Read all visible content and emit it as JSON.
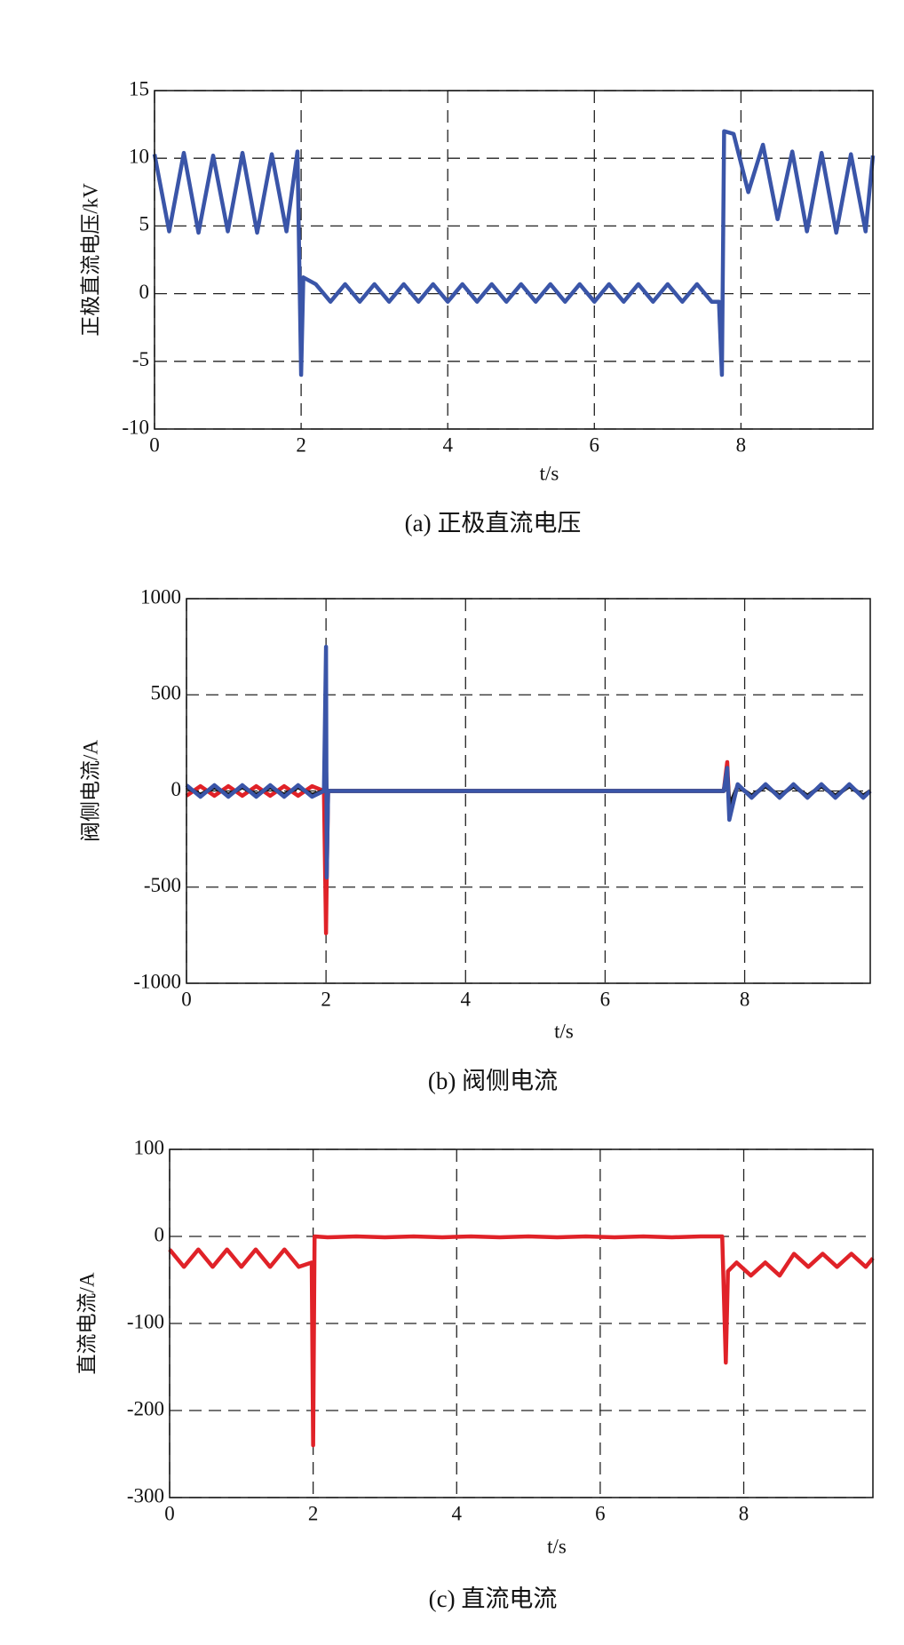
{
  "chart_data": [
    {
      "type": "line",
      "caption": "(a) 正极直流电压",
      "xlabel": "t/s",
      "ylabel": "正极直流电压/kV",
      "xlim": [
        0,
        9.8
      ],
      "xticks": [
        0,
        2,
        4,
        6,
        8
      ],
      "ylim": [
        -10,
        15
      ],
      "yticks": [
        -10,
        -5,
        0,
        5,
        10,
        15
      ],
      "grid": true,
      "x": [
        0,
        0.2,
        0.4,
        0.6,
        0.8,
        1.0,
        1.2,
        1.4,
        1.6,
        1.8,
        1.95,
        2.0,
        2.03,
        2.2,
        2.4,
        2.6,
        2.8,
        3.0,
        3.2,
        3.4,
        3.6,
        3.8,
        4.0,
        4.2,
        4.4,
        4.6,
        4.8,
        5.0,
        5.2,
        5.4,
        5.6,
        5.8,
        6.0,
        6.2,
        6.4,
        6.6,
        6.8,
        7.0,
        7.2,
        7.4,
        7.6,
        7.7,
        7.74,
        7.77,
        7.9,
        8.1,
        8.3,
        8.5,
        8.7,
        8.9,
        9.1,
        9.3,
        9.5,
        9.7,
        9.8
      ],
      "series": [
        {
          "color": "#3a55a8",
          "values": [
            10.3,
            4.6,
            10.4,
            4.5,
            10.2,
            4.6,
            10.4,
            4.5,
            10.3,
            4.6,
            10.5,
            -6,
            1.2,
            0.7,
            -0.6,
            0.7,
            -0.6,
            0.7,
            -0.6,
            0.7,
            -0.6,
            0.7,
            -0.6,
            0.7,
            -0.6,
            0.7,
            -0.6,
            0.7,
            -0.6,
            0.7,
            -0.6,
            0.7,
            -0.6,
            0.7,
            -0.6,
            0.7,
            -0.6,
            0.7,
            -0.6,
            0.7,
            -0.6,
            -0.6,
            -6,
            12,
            11.8,
            7.5,
            11,
            5.5,
            10.5,
            4.6,
            10.4,
            4.5,
            10.3,
            4.6,
            10.2
          ]
        }
      ]
    },
    {
      "type": "line",
      "caption": "(b) 阀侧电流",
      "xlabel": "t/s",
      "ylabel": "阀侧电流/A",
      "xlim": [
        0,
        9.8
      ],
      "xticks": [
        0,
        2,
        4,
        6,
        8
      ],
      "ylim": [
        -1000,
        1000
      ],
      "yticks": [
        -1000,
        -500,
        0,
        500,
        1000
      ],
      "grid": true,
      "x": [
        0,
        0.2,
        0.4,
        0.6,
        0.8,
        1.0,
        1.2,
        1.4,
        1.6,
        1.8,
        1.97,
        2.0,
        2.01,
        2.03,
        2.2,
        2.6,
        3.0,
        3.4,
        3.8,
        4.2,
        4.6,
        5.0,
        5.4,
        5.8,
        6.2,
        6.6,
        7.0,
        7.4,
        7.7,
        7.75,
        7.78,
        7.9,
        8.1,
        8.3,
        8.5,
        8.7,
        8.9,
        9.1,
        9.3,
        9.5,
        9.7,
        9.8
      ],
      "series": [
        {
          "color": "#e02228",
          "values": [
            -25,
            25,
            -25,
            25,
            -25,
            25,
            -25,
            25,
            -25,
            25,
            0,
            -740,
            -450,
            0,
            0,
            0,
            0,
            0,
            0,
            0,
            0,
            0,
            0,
            0,
            0,
            0,
            0,
            0,
            0,
            150,
            -100,
            30,
            -30,
            30,
            -30,
            30,
            -30,
            30,
            -30,
            30,
            -30,
            0
          ]
        },
        {
          "color": "#111111",
          "values": [
            20,
            -20,
            20,
            -20,
            20,
            -20,
            20,
            -20,
            20,
            -20,
            0,
            130,
            -60,
            0,
            0,
            0,
            0,
            0,
            0,
            0,
            0,
            0,
            0,
            0,
            0,
            0,
            0,
            0,
            0,
            100,
            -80,
            25,
            -25,
            25,
            -25,
            25,
            -25,
            25,
            -25,
            25,
            -25,
            0
          ]
        },
        {
          "color": "#3a55a8",
          "values": [
            30,
            -30,
            30,
            -30,
            30,
            -30,
            30,
            -30,
            30,
            -30,
            0,
            750,
            -450,
            0,
            0,
            0,
            0,
            0,
            0,
            0,
            0,
            0,
            0,
            0,
            0,
            0,
            0,
            0,
            0,
            120,
            -150,
            35,
            -35,
            35,
            -35,
            35,
            -35,
            35,
            -35,
            35,
            -35,
            0
          ]
        }
      ]
    },
    {
      "type": "line",
      "caption": "(c) 直流电流",
      "xlabel": "t/s",
      "ylabel": "直流电流/A",
      "xlim": [
        0,
        9.8
      ],
      "xticks": [
        0,
        2,
        4,
        6,
        8
      ],
      "ylim": [
        -300,
        100
      ],
      "yticks": [
        -300,
        -200,
        -100,
        0,
        100
      ],
      "grid": true,
      "x": [
        0,
        0.2,
        0.4,
        0.6,
        0.8,
        1.0,
        1.2,
        1.4,
        1.6,
        1.8,
        1.98,
        2.0,
        2.02,
        2.2,
        2.6,
        3.0,
        3.4,
        3.8,
        4.2,
        4.6,
        5.0,
        5.4,
        5.8,
        6.2,
        6.6,
        7.0,
        7.4,
        7.7,
        7.75,
        7.78,
        7.9,
        8.1,
        8.3,
        8.5,
        8.7,
        8.9,
        9.1,
        9.3,
        9.5,
        9.7,
        9.8
      ],
      "series": [
        {
          "color": "#e02228",
          "values": [
            -15,
            -35,
            -15,
            -35,
            -15,
            -35,
            -15,
            -35,
            -15,
            -35,
            -30,
            -240,
            0,
            -1,
            0,
            -1,
            0,
            -1,
            0,
            -1,
            0,
            -1,
            0,
            -1,
            0,
            -1,
            0,
            0,
            -145,
            -40,
            -30,
            -45,
            -30,
            -45,
            -20,
            -35,
            -20,
            -35,
            -20,
            -35,
            -25
          ]
        }
      ]
    }
  ]
}
